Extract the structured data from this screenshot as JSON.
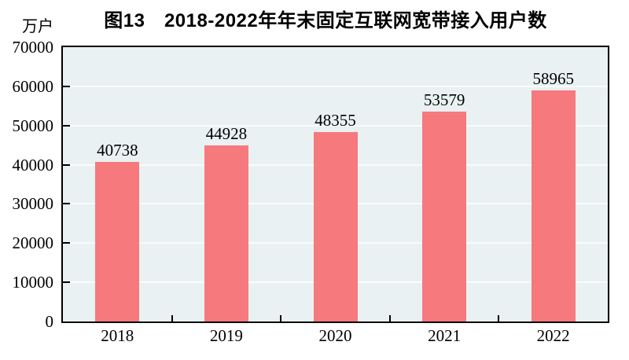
{
  "chart_data": {
    "type": "bar",
    "title": "图13　2018-2022年年末固定互联网宽带接入用户数",
    "ylabel": "万户",
    "xlabel": "",
    "categories": [
      "2018",
      "2019",
      "2020",
      "2021",
      "2022"
    ],
    "values": [
      40738,
      44928,
      48355,
      53579,
      58965
    ],
    "ylim": [
      0,
      70000
    ],
    "ytick_step": 10000,
    "yticks": [
      0,
      10000,
      20000,
      30000,
      40000,
      50000,
      60000,
      70000
    ],
    "grid": "horizontal",
    "legend_position": "none",
    "bar_color": "#f6797d",
    "plot_bg": "#e9f1f2",
    "grid_color": "#f9fcfc",
    "axis_color": "#000000",
    "text_color": "#000000"
  }
}
